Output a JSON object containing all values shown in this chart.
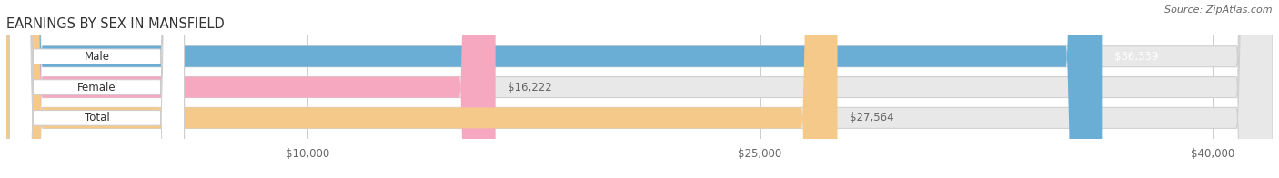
{
  "title": "EARNINGS BY SEX IN MANSFIELD",
  "source": "Source: ZipAtlas.com",
  "categories": [
    "Male",
    "Female",
    "Total"
  ],
  "values": [
    36339,
    16222,
    27564
  ],
  "bar_colors": [
    "#6aaed6",
    "#f5a8bf",
    "#f5c98a"
  ],
  "bar_bg_color": "#e8e8e8",
  "bar_border_color": "#d0d0d0",
  "value_labels": [
    "$36,339",
    "$16,222",
    "$27,564"
  ],
  "value_label_colors": [
    "#ffffff",
    "#666666",
    "#666666"
  ],
  "x_ticks": [
    10000,
    25000,
    40000
  ],
  "x_tick_labels": [
    "$10,000",
    "$25,000",
    "$40,000"
  ],
  "x_min": 0,
  "x_max": 42000,
  "title_fontsize": 10.5,
  "source_fontsize": 8,
  "cat_label_fontsize": 8.5,
  "value_fontsize": 8.5,
  "tick_fontsize": 8.5,
  "background_color": "#ffffff",
  "grid_color": "#cccccc",
  "cat_label_color": "#333333",
  "tick_color": "#666666"
}
